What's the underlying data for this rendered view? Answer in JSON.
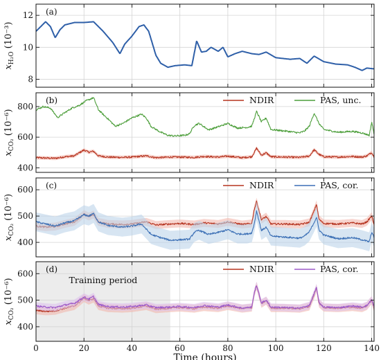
{
  "chart_data": [
    {
      "type": "line",
      "panel_label": "(a)",
      "ylabel": "x_{H2O} (10^{-3})",
      "ylabel_main": "x",
      "ylabel_sub": "H₂O",
      "ylabel_unit": "(10⁻³)",
      "xlim": [
        0,
        141
      ],
      "ylim": [
        7.5,
        12.7
      ],
      "yticks": [
        8,
        10,
        12
      ],
      "grid": true,
      "legend": "",
      "series": [
        {
          "color": "#2e5fa8",
          "x": [
            0,
            2,
            4,
            6,
            8,
            10,
            12,
            16,
            20,
            24,
            28,
            32,
            35,
            37,
            40,
            43,
            45,
            47,
            50,
            52,
            55,
            58,
            62,
            65,
            67,
            69,
            71,
            73,
            76,
            78,
            80,
            83,
            86,
            90,
            93,
            96,
            100,
            106,
            110,
            113,
            116,
            120,
            125,
            130,
            133,
            136,
            138,
            141
          ],
          "y": [
            11.0,
            11.3,
            11.6,
            11.3,
            10.6,
            11.1,
            11.4,
            11.55,
            11.55,
            11.6,
            11.0,
            10.3,
            9.6,
            10.2,
            10.7,
            11.3,
            11.4,
            11.0,
            9.5,
            9.0,
            8.75,
            8.85,
            8.9,
            8.85,
            10.4,
            9.7,
            9.75,
            10.0,
            9.75,
            10.0,
            9.4,
            9.6,
            9.75,
            9.6,
            9.55,
            9.7,
            9.35,
            9.25,
            9.3,
            9.0,
            9.45,
            9.1,
            8.95,
            8.9,
            8.75,
            8.55,
            8.7,
            8.65
          ]
        }
      ]
    },
    {
      "type": "line",
      "panel_label": "(b)",
      "ylabel": "x_{CO2} (10^{-6})",
      "ylabel_main": "x",
      "ylabel_sub": "CO₂",
      "ylabel_unit": "(10⁻⁶)",
      "xlim": [
        0,
        141
      ],
      "ylim": [
        370,
        890
      ],
      "yticks": [
        400,
        600,
        800
      ],
      "grid": true,
      "legend": "top-right",
      "series": [
        {
          "name": "NDIR",
          "color": "#b5331f",
          "band": 12,
          "band_color": "#f2b8ae",
          "x": [
            0,
            8,
            12,
            16,
            18,
            20,
            22,
            24,
            26,
            30,
            36,
            40,
            46,
            50,
            56,
            60,
            66,
            70,
            76,
            80,
            86,
            90,
            92,
            94,
            96,
            98,
            104,
            110,
            114,
            116,
            118,
            120,
            126,
            132,
            136,
            138,
            140,
            141
          ],
          "y": [
            466,
            462,
            472,
            478,
            498,
            516,
            502,
            508,
            478,
            470,
            468,
            470,
            478,
            466,
            470,
            470,
            468,
            474,
            470,
            476,
            466,
            472,
            528,
            482,
            498,
            472,
            470,
            468,
            476,
            518,
            488,
            472,
            470,
            474,
            470,
            478,
            500,
            470
          ]
        },
        {
          "name": "PAS, unc.",
          "color": "#4c9e3a",
          "x": [
            0,
            3,
            6,
            9,
            12,
            15,
            18,
            21,
            24,
            26,
            28,
            30,
            33,
            36,
            40,
            44,
            46,
            48,
            52,
            55,
            58,
            62,
            64,
            66,
            68,
            72,
            76,
            80,
            84,
            88,
            90,
            92,
            94,
            96,
            98,
            104,
            110,
            112,
            114,
            116,
            118,
            120,
            126,
            132,
            136,
            139,
            140,
            141
          ],
          "y": [
            778,
            800,
            790,
            728,
            760,
            790,
            808,
            838,
            858,
            780,
            748,
            720,
            672,
            688,
            726,
            750,
            725,
            670,
            632,
            612,
            608,
            612,
            622,
            676,
            690,
            648,
            668,
            690,
            660,
            664,
            672,
            768,
            700,
            725,
            650,
            640,
            628,
            640,
            672,
            758,
            690,
            650,
            632,
            638,
            628,
            612,
            700,
            622
          ]
        }
      ]
    },
    {
      "type": "line",
      "panel_label": "(c)",
      "ylabel": "x_{CO2} (10^{-6})",
      "ylabel_main": "x",
      "ylabel_sub": "CO₂",
      "ylabel_unit": "(10⁻⁶)",
      "xlim": [
        0,
        141
      ],
      "ylim": [
        345,
        645
      ],
      "yticks": [
        400,
        500,
        600
      ],
      "grid": true,
      "legend": "top-right",
      "series": [
        {
          "name": "NDIR",
          "color": "#b5331f",
          "band": 15,
          "band_color": "#f2b8ae",
          "x": [
            0,
            4,
            8,
            12,
            16,
            18,
            20,
            22,
            24,
            26,
            30,
            36,
            40,
            46,
            50,
            56,
            60,
            66,
            70,
            76,
            80,
            86,
            90,
            91,
            92,
            94,
            96,
            98,
            104,
            110,
            114,
            116,
            117,
            118,
            120,
            126,
            132,
            136,
            138,
            140,
            141
          ],
          "y": [
            462,
            458,
            460,
            470,
            478,
            492,
            508,
            498,
            506,
            478,
            470,
            468,
            470,
            478,
            466,
            470,
            472,
            468,
            474,
            470,
            478,
            468,
            472,
            525,
            555,
            486,
            498,
            470,
            470,
            468,
            476,
            520,
            545,
            488,
            472,
            470,
            474,
            470,
            478,
            500,
            470
          ]
        },
        {
          "name": "PAS, cor.",
          "color": "#3b6fb5",
          "band": 36,
          "band_color": "#bcd3ea",
          "x": [
            0,
            4,
            8,
            12,
            16,
            18,
            20,
            22,
            24,
            26,
            30,
            36,
            40,
            44,
            46,
            48,
            52,
            56,
            60,
            64,
            66,
            68,
            72,
            76,
            80,
            84,
            88,
            90,
            91,
            92,
            94,
            96,
            98,
            104,
            110,
            112,
            114,
            116,
            117,
            118,
            120,
            126,
            132,
            136,
            139,
            140,
            141
          ],
          "y": [
            478,
            470,
            462,
            474,
            482,
            494,
            505,
            500,
            510,
            478,
            464,
            458,
            462,
            470,
            450,
            430,
            418,
            408,
            410,
            412,
            438,
            446,
            430,
            438,
            448,
            432,
            432,
            436,
            470,
            520,
            445,
            458,
            424,
            420,
            416,
            424,
            440,
            476,
            496,
            448,
            428,
            414,
            418,
            410,
            402,
            440,
            418
          ]
        }
      ]
    },
    {
      "type": "line",
      "panel_label": "(d)",
      "ylabel": "x_{CO2} (10^{-6})",
      "ylabel_main": "x",
      "ylabel_sub": "CO₂",
      "ylabel_unit": "(10⁻⁶)",
      "xlim": [
        0,
        141
      ],
      "ylim": [
        345,
        645
      ],
      "yticks": [
        400,
        500,
        600
      ],
      "xticks": [
        0,
        20,
        40,
        60,
        80,
        100,
        120,
        140
      ],
      "xlabel": "Time (hours)",
      "grid": true,
      "legend": "top-right",
      "annotation": {
        "text": "Training period",
        "shaded_x": [
          0,
          56
        ]
      },
      "series": [
        {
          "name": "NDIR",
          "color": "#b5331f",
          "band": 15,
          "band_color": "#f2b8ae",
          "x": [
            0,
            4,
            8,
            12,
            16,
            18,
            20,
            22,
            24,
            26,
            30,
            36,
            40,
            46,
            50,
            56,
            60,
            66,
            70,
            76,
            80,
            86,
            90,
            91,
            92,
            94,
            96,
            98,
            104,
            110,
            114,
            116,
            117,
            118,
            120,
            126,
            132,
            136,
            138,
            140,
            141
          ],
          "y": [
            462,
            458,
            460,
            470,
            478,
            492,
            508,
            498,
            506,
            478,
            470,
            468,
            470,
            478,
            466,
            470,
            472,
            468,
            474,
            470,
            478,
            468,
            472,
            525,
            555,
            486,
            498,
            470,
            470,
            468,
            476,
            520,
            545,
            488,
            472,
            470,
            474,
            470,
            478,
            500,
            470
          ]
        },
        {
          "name": "PAS, cor.",
          "color": "#9b59c9",
          "band": 14,
          "band_color": "#ddc3ee",
          "x": [
            0,
            4,
            8,
            12,
            16,
            18,
            20,
            22,
            24,
            26,
            30,
            36,
            40,
            46,
            50,
            56,
            60,
            66,
            70,
            76,
            80,
            86,
            90,
            91,
            92,
            94,
            96,
            98,
            104,
            110,
            114,
            116,
            117,
            118,
            120,
            126,
            132,
            136,
            138,
            140,
            141
          ],
          "y": [
            478,
            474,
            472,
            482,
            488,
            500,
            512,
            504,
            514,
            484,
            476,
            474,
            476,
            482,
            472,
            474,
            476,
            472,
            480,
            474,
            482,
            470,
            474,
            528,
            556,
            490,
            500,
            474,
            472,
            470,
            480,
            524,
            548,
            492,
            474,
            472,
            478,
            474,
            480,
            502,
            474
          ]
        }
      ]
    }
  ]
}
